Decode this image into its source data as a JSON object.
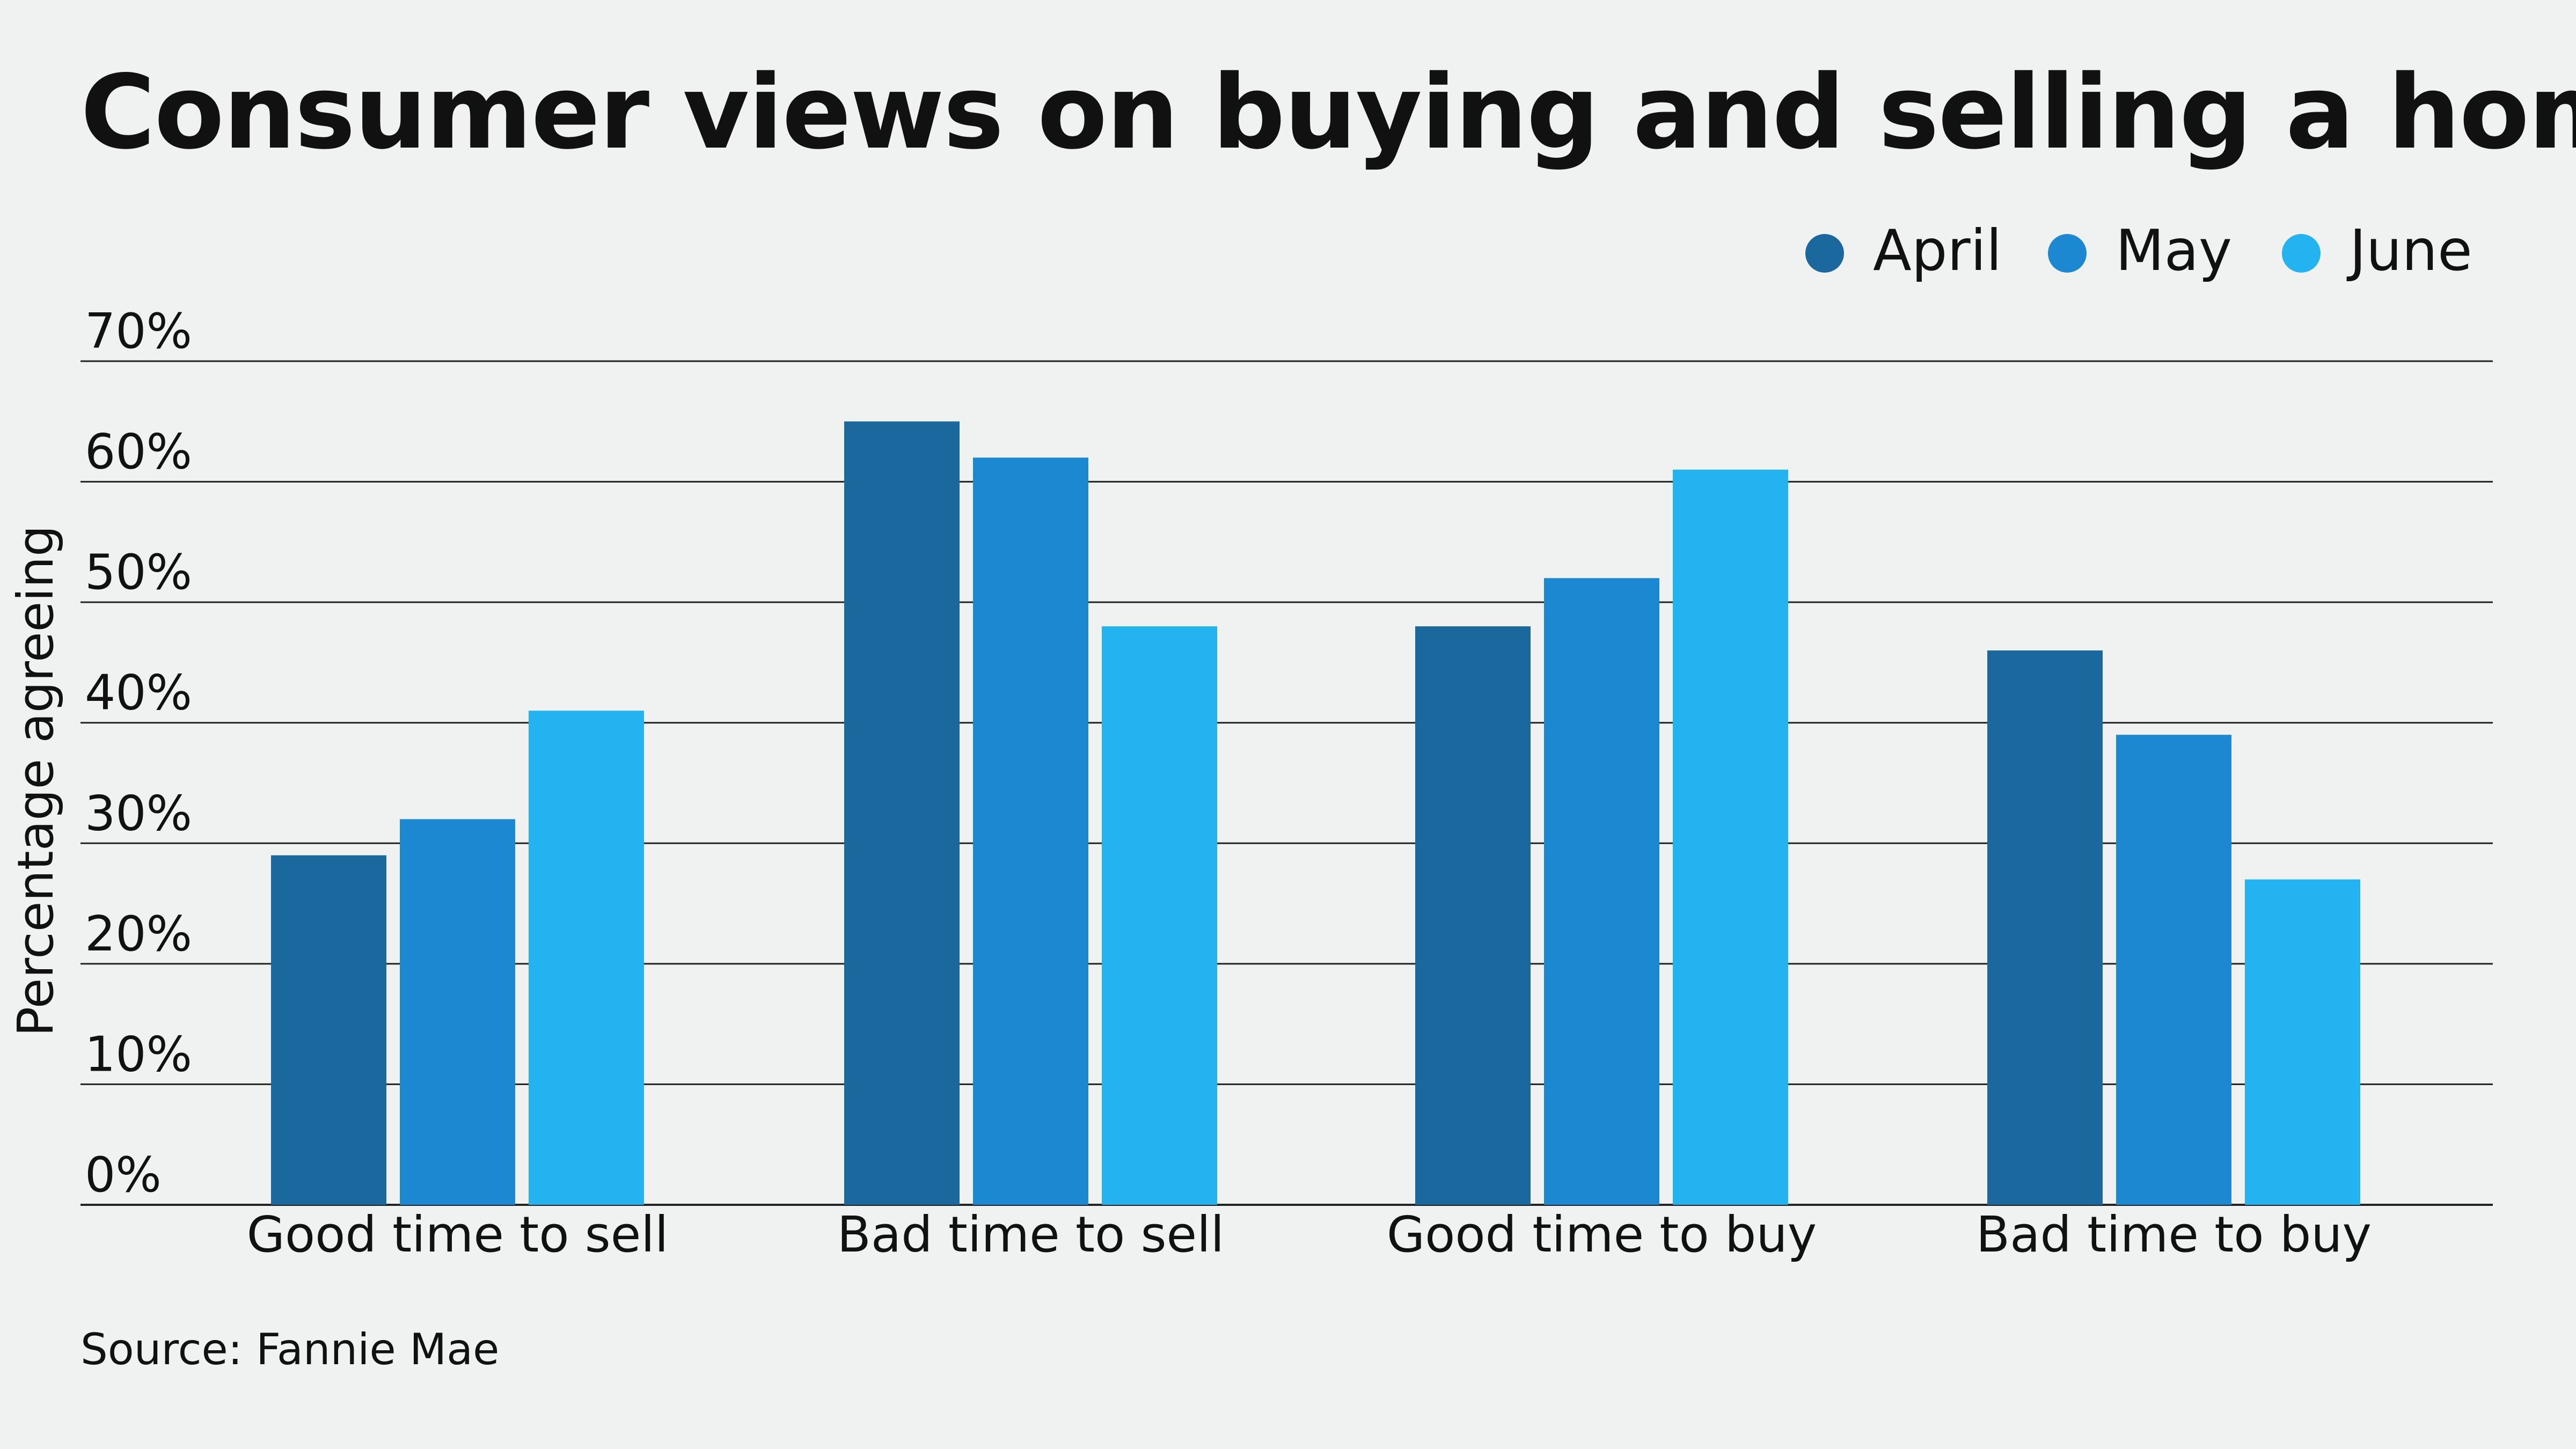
{
  "chart_data": {
    "type": "bar",
    "title": "Consumer views on buying and selling a home",
    "ylabel": "Percentage agreeing",
    "xlabel": "",
    "categories": [
      "Good time to sell",
      "Bad time to sell",
      "Good time to buy",
      "Bad time to buy"
    ],
    "series": [
      {
        "name": "April",
        "color": "#1b689f",
        "values": [
          29,
          65,
          48,
          46
        ]
      },
      {
        "name": "May",
        "color": "#1b88d1",
        "values": [
          32,
          62,
          52,
          39
        ]
      },
      {
        "name": "June",
        "color": "#22b3f0",
        "values": [
          41,
          48,
          61,
          27
        ]
      }
    ],
    "ylim": [
      0,
      70
    ],
    "yticks": [
      0,
      10,
      20,
      30,
      40,
      50,
      60,
      70
    ],
    "ytick_labels": [
      "0%",
      "10%",
      "20%",
      "30%",
      "40%",
      "50%",
      "60%",
      "70%"
    ],
    "grid": "horizontal",
    "legend_position": "top-right"
  },
  "source": "Source: Fannie Mae"
}
